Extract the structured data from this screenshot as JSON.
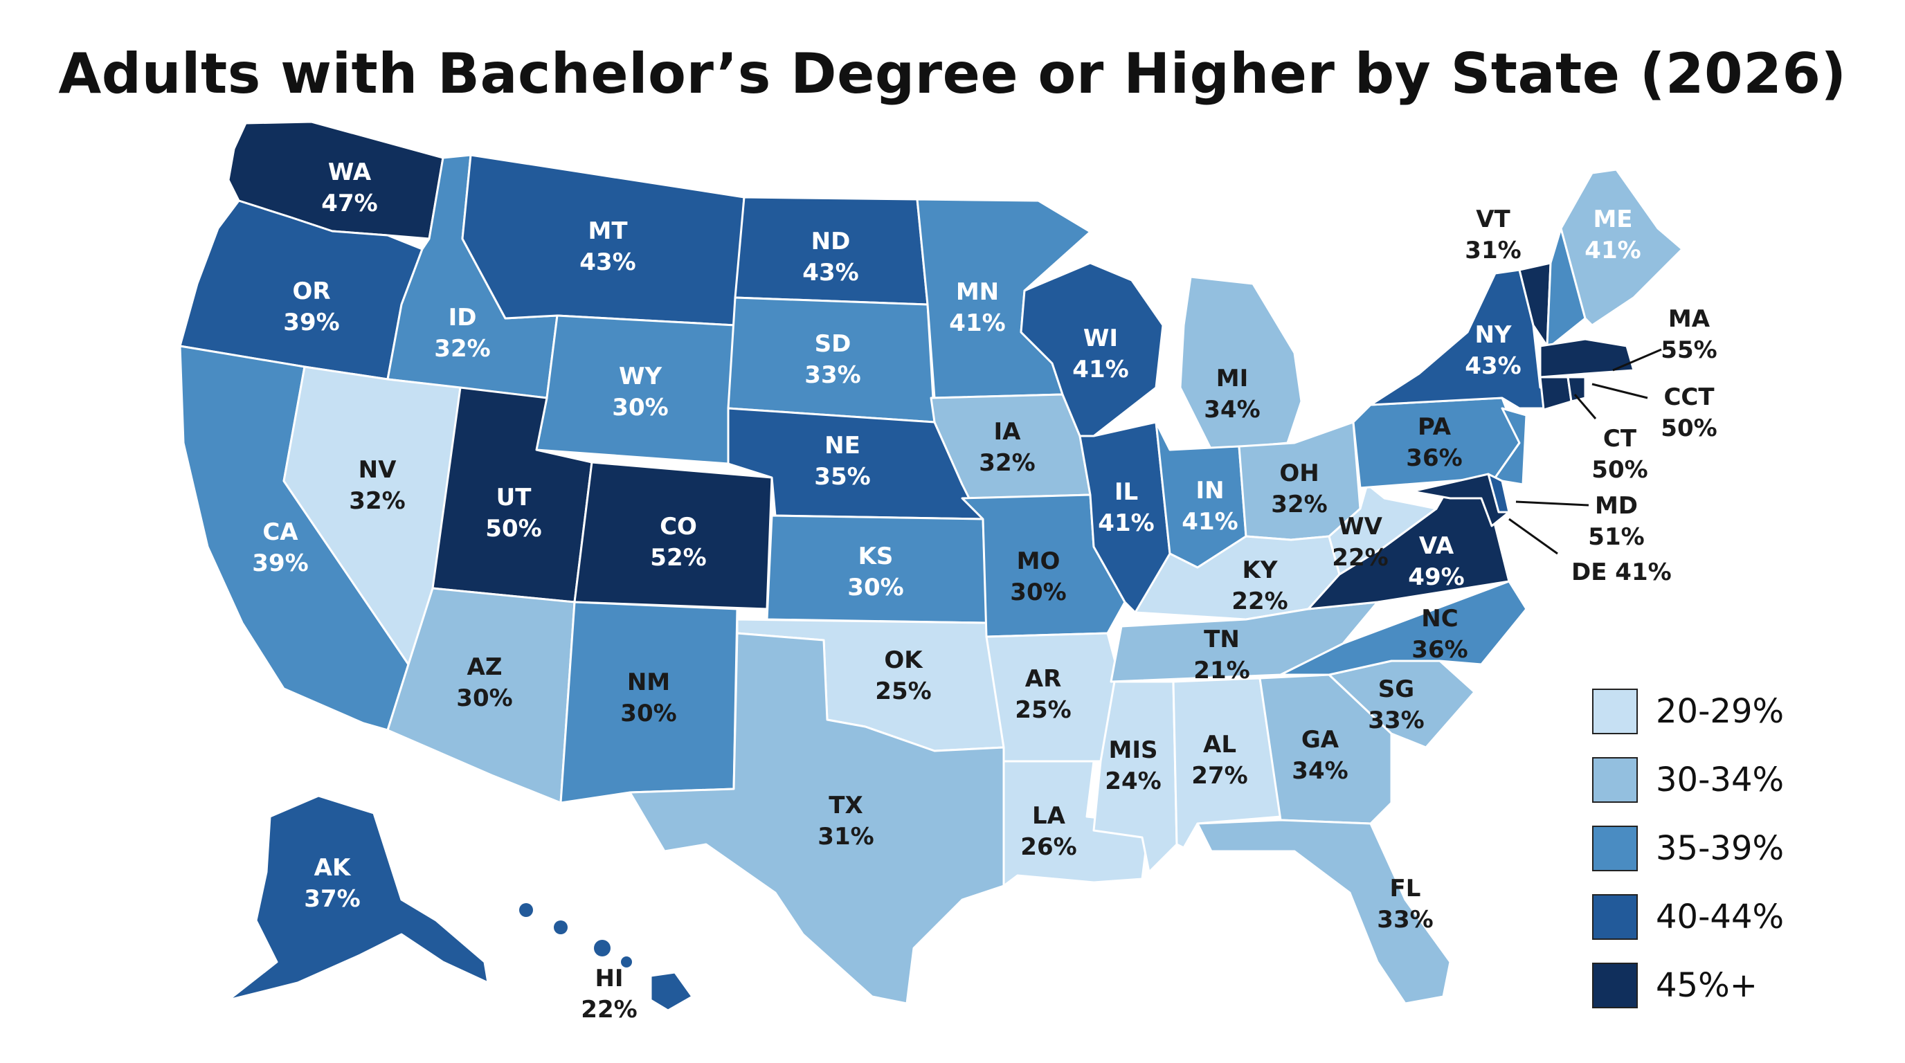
{
  "title": "Adults with Bachelor’s Degree or Higher by State (2026)",
  "legend": [
    {
      "label": "20-29%",
      "color": "#c6e0f3"
    },
    {
      "label": "30-34%",
      "color": "#93bfdf"
    },
    {
      "label": "35-39%",
      "color": "#4a8cc2"
    },
    {
      "label": "40-44%",
      "color": "#225a9a"
    },
    {
      "label": "45%+",
      "color": "#102f5c"
    }
  ],
  "states": [
    {
      "abbr": "WA",
      "value": "47%"
    },
    {
      "abbr": "OR",
      "value": "39%"
    },
    {
      "abbr": "CA",
      "value": "39%"
    },
    {
      "abbr": "ID",
      "value": "32%"
    },
    {
      "abbr": "NV",
      "value": "32%"
    },
    {
      "abbr": "MT",
      "value": "43%"
    },
    {
      "abbr": "WY",
      "value": "30%"
    },
    {
      "abbr": "UT",
      "value": "50%"
    },
    {
      "abbr": "AZ",
      "value": "30%"
    },
    {
      "abbr": "CO",
      "value": "52%"
    },
    {
      "abbr": "NM",
      "value": "30%"
    },
    {
      "abbr": "ND",
      "value": "43%"
    },
    {
      "abbr": "SD",
      "value": "33%"
    },
    {
      "abbr": "NE",
      "value": "35%"
    },
    {
      "abbr": "KS",
      "value": "30%"
    },
    {
      "abbr": "OK",
      "value": "25%"
    },
    {
      "abbr": "TX",
      "value": "31%"
    },
    {
      "abbr": "MN",
      "value": "41%"
    },
    {
      "abbr": "IA",
      "value": "32%"
    },
    {
      "abbr": "MO",
      "value": "30%"
    },
    {
      "abbr": "AR",
      "value": "25%"
    },
    {
      "abbr": "LA",
      "value": "26%"
    },
    {
      "abbr": "WI",
      "value": "41%"
    },
    {
      "abbr": "IL",
      "value": "41%"
    },
    {
      "abbr": "MI",
      "value": "34%"
    },
    {
      "abbr": "IN",
      "value": "41%"
    },
    {
      "abbr": "OH",
      "value": "32%"
    },
    {
      "abbr": "KY",
      "value": "22%"
    },
    {
      "abbr": "TN",
      "value": "21%"
    },
    {
      "abbr": "MIS",
      "value": "24%"
    },
    {
      "abbr": "AL",
      "value": "27%"
    },
    {
      "abbr": "GA",
      "value": "34%"
    },
    {
      "abbr": "FL",
      "value": "33%"
    },
    {
      "abbr": "SG",
      "value": "33%"
    },
    {
      "abbr": "NC",
      "value": "36%"
    },
    {
      "abbr": "VA",
      "value": "49%"
    },
    {
      "abbr": "WV",
      "value": "22%"
    },
    {
      "abbr": "PA",
      "value": "36%"
    },
    {
      "abbr": "NY",
      "value": "43%"
    },
    {
      "abbr": "VT",
      "value": "31%"
    },
    {
      "abbr": "ME",
      "value": "41%"
    },
    {
      "abbr": "MA",
      "value": "55%"
    },
    {
      "abbr": "CCT",
      "value": "50%"
    },
    {
      "abbr": "CT",
      "value": "50%"
    },
    {
      "abbr": "MD",
      "value": "51%"
    },
    {
      "abbr": "DE",
      "value": "41%"
    },
    {
      "abbr": "AK",
      "value": "37%"
    },
    {
      "abbr": "HI",
      "value": "22%"
    }
  ]
}
